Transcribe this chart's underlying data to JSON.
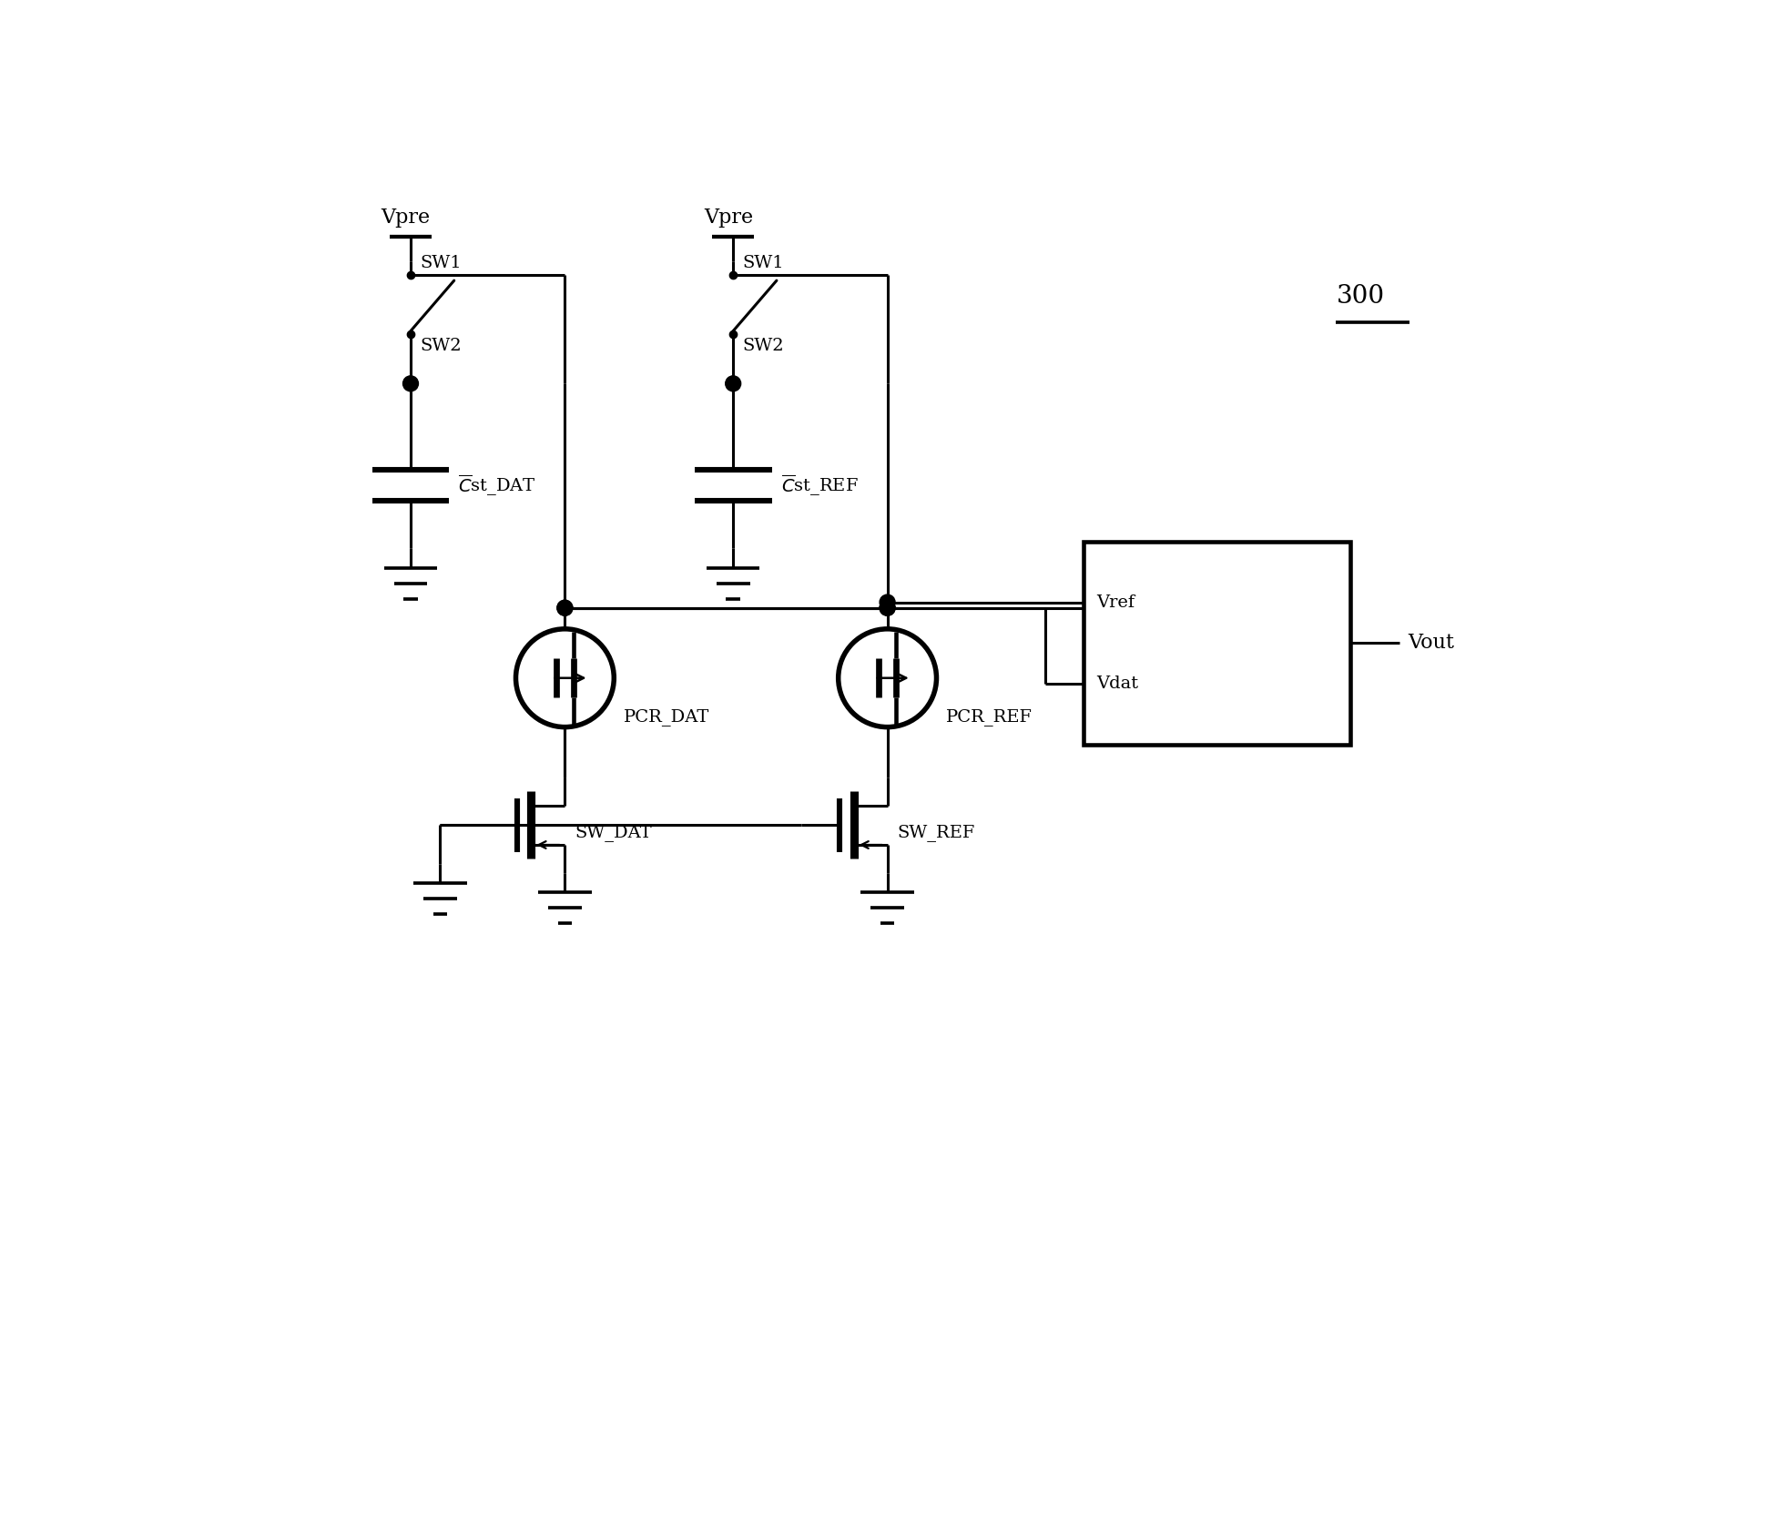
{
  "bg_color": "#ffffff",
  "lc": "#000000",
  "lw": 2.2,
  "fig_w": 19.67,
  "fig_h": 16.63,
  "lbl_300": "300",
  "lbl_vpre1": "Vpre",
  "lbl_vpre2": "Vpre",
  "lbl_sw1_1": "SW1",
  "lbl_sw2_1": "SW2",
  "lbl_sw1_2": "SW1",
  "lbl_sw2_2": "SW2",
  "lbl_cst_dat": "st_DAT",
  "lbl_cst_ref": "st_REF",
  "lbl_vref": "Vref",
  "lbl_vdat": "Vdat",
  "lbl_vout": "Vout",
  "lbl_pcr_dat": "PCR_DAT",
  "lbl_pcr_ref": "PCR_REF",
  "lbl_sw_dat": "SW_DAT",
  "lbl_sw_ref": "SW_REF"
}
